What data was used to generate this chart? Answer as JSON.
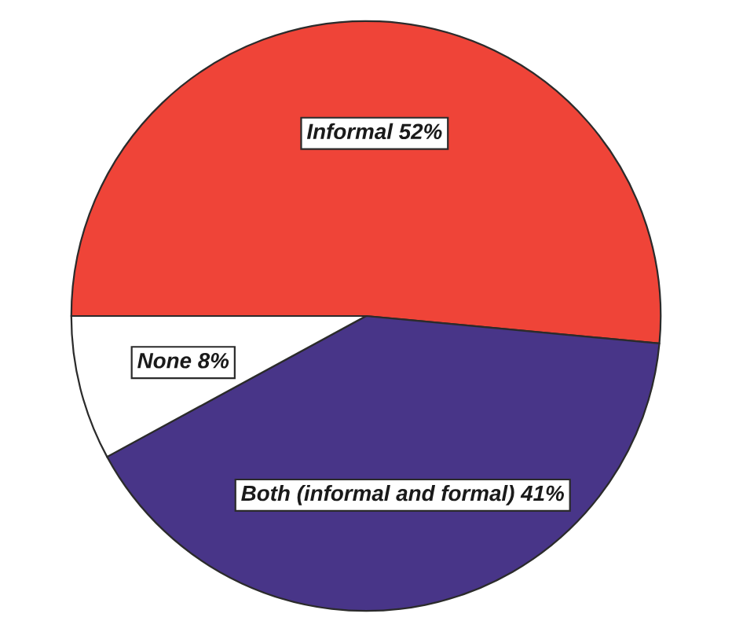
{
  "chart_data": {
    "type": "pie",
    "categories": [
      "Informal",
      "Both (informal and formal)",
      "None"
    ],
    "values": [
      52,
      41,
      8
    ],
    "colors": [
      "#ef4438",
      "#483588",
      "#ffffff"
    ],
    "value_labels": [
      "52%",
      "41%",
      "8%"
    ]
  }
}
